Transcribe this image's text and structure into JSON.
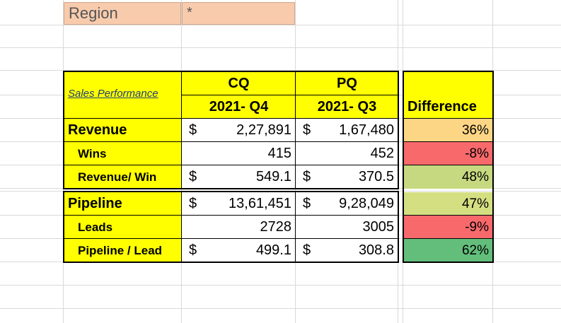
{
  "region": {
    "label": "Region",
    "value": "*"
  },
  "table": {
    "title": "Sales Performance",
    "cq_header": "CQ",
    "pq_header": "PQ",
    "cq_period": "2021- Q4",
    "pq_period": "2021- Q3",
    "difference_header": "Difference",
    "currency_symbol": "$",
    "rows": [
      {
        "label": "Revenue",
        "cq": "2,27,891",
        "pq": "1,67,480",
        "diff": "36%",
        "diff_color": "#fdd685"
      },
      {
        "label": "Wins",
        "cq": "415",
        "pq": "452",
        "diff": "-8%",
        "diff_color": "#f8696b"
      },
      {
        "label": "Revenue/ Win",
        "cq": "549.1",
        "pq": "370.5",
        "diff": "48%",
        "diff_color": "#c6d980"
      },
      {
        "label": "Pipeline",
        "cq": "13,61,451",
        "pq": "9,28,049",
        "diff": "47%",
        "diff_color": "#d4df82"
      },
      {
        "label": "Leads",
        "cq": "2728",
        "pq": "3005",
        "diff": "-9%",
        "diff_color": "#f8696b"
      },
      {
        "label": "Pipeline / Lead",
        "cq": "499.1",
        "pq": "308.8",
        "diff": "62%",
        "diff_color": "#63be7b"
      }
    ]
  }
}
